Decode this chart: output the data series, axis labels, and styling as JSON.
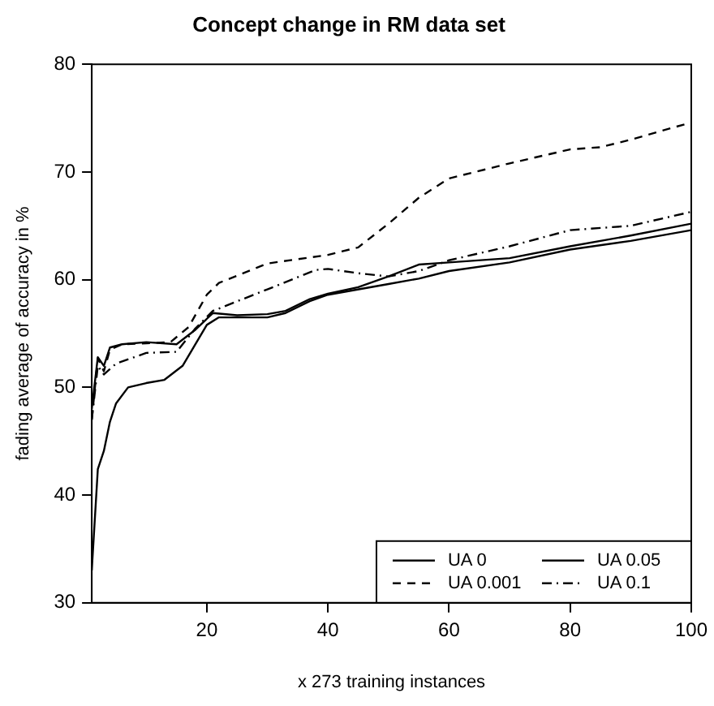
{
  "chart_data": {
    "type": "line",
    "title": "Concept change in RM data set",
    "xlabel": "x 273 training instances",
    "ylabel": "fading average of accuracy in %",
    "xlim": [
      1,
      100
    ],
    "xticks": [
      20,
      40,
      60,
      80,
      100
    ],
    "ylim": [
      30,
      80
    ],
    "yticks": [
      30,
      40,
      50,
      60,
      70,
      80
    ],
    "grid": false,
    "legend": "bottom right",
    "marker": "none",
    "series": [
      {
        "name": "UA 0",
        "color": "#000000",
        "line_style": "solid",
        "x": [
          1,
          2,
          3,
          4,
          5,
          7,
          10,
          13,
          16,
          18,
          20,
          22,
          30,
          33,
          37,
          40,
          50,
          55,
          60,
          70,
          80,
          90,
          100
        ],
        "values": [
          33,
          42.4,
          44.1,
          46.8,
          48.5,
          50.0,
          50.4,
          50.7,
          52.0,
          53.9,
          55.8,
          56.5,
          56.5,
          56.9,
          58.0,
          58.6,
          59.6,
          60.1,
          60.8,
          61.6,
          62.8,
          63.6,
          64.6
        ]
      },
      {
        "name": "UA 0.001",
        "color": "#000000",
        "line_style": "dashed",
        "x": [
          1,
          2,
          3,
          4,
          6,
          10,
          14,
          17,
          20,
          22,
          30,
          40,
          45,
          50,
          55,
          60,
          70,
          80,
          85,
          90,
          100
        ],
        "values": [
          47,
          52.7,
          51.5,
          53.5,
          54.0,
          54.1,
          54.2,
          55.6,
          58.6,
          59.7,
          61.5,
          62.3,
          63.0,
          65.2,
          67.6,
          69.4,
          70.8,
          72.1,
          72.3,
          73.0,
          74.6
        ]
      },
      {
        "name": "UA 0.05",
        "color": "#000000",
        "line_style": "solid",
        "x": [
          1,
          2,
          3,
          4,
          6,
          10,
          15,
          18,
          21,
          25,
          30,
          33,
          37,
          40,
          45,
          50,
          55,
          60,
          70,
          80,
          90,
          100
        ],
        "values": [
          48,
          52.8,
          52.0,
          53.7,
          54.0,
          54.2,
          54.0,
          55.3,
          56.9,
          56.7,
          56.8,
          57.1,
          58.2,
          58.7,
          59.3,
          60.3,
          61.4,
          61.6,
          62.0,
          63.1,
          64.1,
          65.2
        ]
      },
      {
        "name": "UA 0.1",
        "color": "#000000",
        "line_style": "dashdot",
        "x": [
          1,
          2,
          3,
          5,
          10,
          15,
          18,
          21,
          30,
          38,
          40,
          45,
          50,
          55,
          60,
          70,
          80,
          90,
          100
        ],
        "values": [
          47,
          52.0,
          51.2,
          52.2,
          53.2,
          53.3,
          55.4,
          57.1,
          59.1,
          60.9,
          61.0,
          60.6,
          60.3,
          60.8,
          61.8,
          63.1,
          64.6,
          65.0,
          66.3
        ]
      }
    ]
  }
}
